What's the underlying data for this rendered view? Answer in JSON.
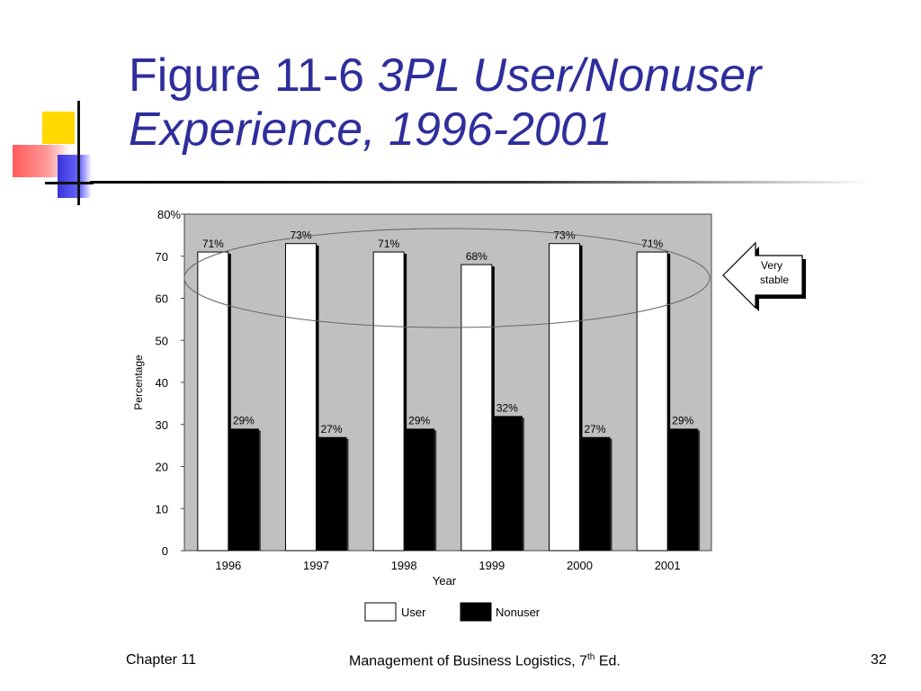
{
  "slide": {
    "title_plain": "Figure 11-6 ",
    "title_italic_1": "3PL User/Nonuser",
    "title_italic_2": "Experience, 1996-2001"
  },
  "footer": {
    "left": "Chapter 11",
    "center_text": "Management of Business Logistics, 7",
    "center_sup": "th",
    "center_suffix": " Ed.",
    "page": "32"
  },
  "colors": {
    "title": "#2e2e9c",
    "plot_bg": "#c0c0c0",
    "user_bar": "#ffffff",
    "nonuser_bar": "#000000"
  },
  "chart_data": {
    "type": "bar",
    "categories": [
      "1996",
      "1997",
      "1998",
      "1999",
      "2000",
      "2001"
    ],
    "series": [
      {
        "name": "User",
        "values": [
          71,
          73,
          71,
          68,
          73,
          71
        ],
        "labels": [
          "71%",
          "73%",
          "71%",
          "68%",
          "73%",
          "71%"
        ]
      },
      {
        "name": "Nonuser",
        "values": [
          29,
          27,
          29,
          32,
          27,
          29
        ],
        "labels": [
          "29%",
          "27%",
          "29%",
          "32%",
          "27%",
          "29%"
        ]
      }
    ],
    "xlabel": "Year",
    "ylabel": "Percentage",
    "ylim": [
      0,
      80
    ],
    "yticks": [
      0,
      10,
      20,
      30,
      40,
      50,
      60,
      70,
      80
    ],
    "ytick_labels": [
      "0",
      "10",
      "20",
      "30",
      "40",
      "50",
      "60",
      "70",
      "80%"
    ],
    "grid": false,
    "legend": "bottom-center",
    "annotation": {
      "line1": "Very",
      "line2": "stable"
    }
  }
}
